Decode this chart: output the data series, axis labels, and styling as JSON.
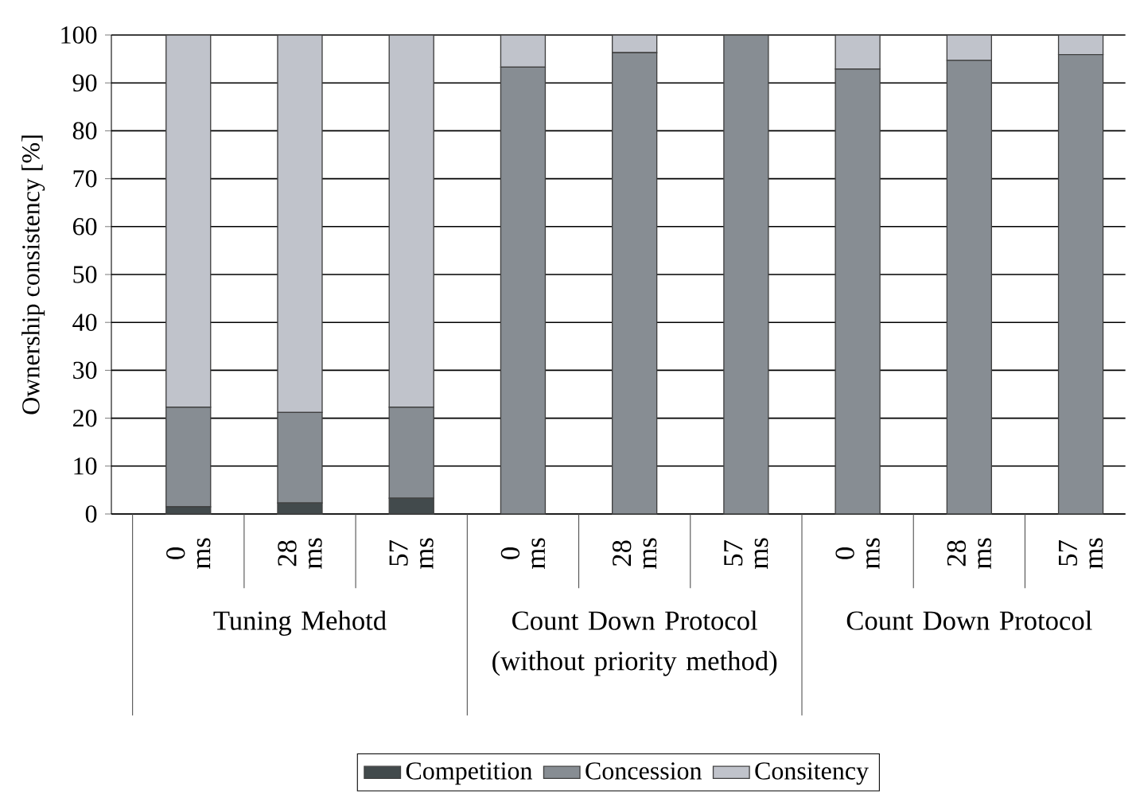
{
  "chart_data": {
    "type": "bar",
    "stacked": true,
    "ylabel": "Ownership consistency [%]",
    "categories": [
      "0 ms",
      "28 ms",
      "57 ms",
      "0 ms",
      "28 ms",
      "57 ms",
      "0 ms",
      "28 ms",
      "57 ms"
    ],
    "series": [
      {
        "name": "Competition",
        "color": "#424a4c",
        "values": [
          1.5,
          2.3,
          3.3,
          0,
          0,
          0,
          0,
          0,
          0
        ]
      },
      {
        "name": "Concession",
        "color": "#878d93",
        "values": [
          20.8,
          18.9,
          19.0,
          93.3,
          96.3,
          100,
          92.9,
          94.7,
          95.9
        ]
      },
      {
        "name": "Consitency",
        "color": "#c0c3cb",
        "values": [
          77.7,
          78.8,
          77.7,
          6.7,
          3.7,
          0,
          7.1,
          5.3,
          4.1
        ]
      }
    ],
    "annotations": [
      "Tuning Mehotd",
      "Count Down Protocol (without priority method)",
      "Count Down Protocol"
    ],
    "ylim": [
      0,
      100
    ],
    "yticks": [
      0,
      10,
      20,
      30,
      40,
      50,
      60,
      70,
      80,
      90,
      100
    ],
    "grid": "y",
    "legend": "bottom"
  }
}
